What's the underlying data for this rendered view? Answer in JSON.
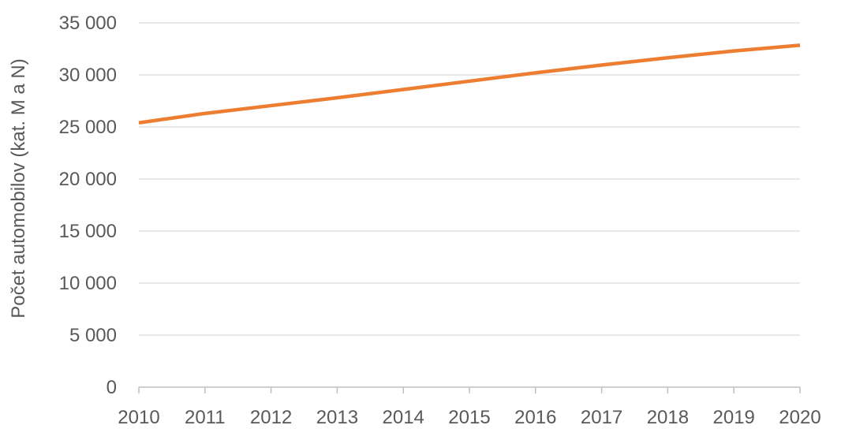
{
  "chart_data": {
    "type": "line",
    "title": "",
    "xlabel": "",
    "ylabel": "Počet automobilov (kat. M a N)",
    "x": [
      2010,
      2011,
      2012,
      2013,
      2014,
      2015,
      2016,
      2017,
      2018,
      2019,
      2020
    ],
    "x_tick_labels": [
      "2010",
      "2011",
      "2012",
      "2013",
      "2014",
      "2015",
      "2016",
      "2017",
      "2018",
      "2019",
      "2020"
    ],
    "y_ticks": [
      0,
      5000,
      10000,
      15000,
      20000,
      25000,
      30000,
      35000
    ],
    "y_tick_labels": [
      "0",
      "5 000",
      "10 000",
      "15 000",
      "20 000",
      "25 000",
      "30 000",
      "35 000"
    ],
    "ylim": [
      0,
      35000
    ],
    "grid": true,
    "legend": "none",
    "series": [
      {
        "color": "#ED7D31",
        "values": [
          25400,
          26300,
          27050,
          27800,
          28600,
          29400,
          30200,
          30950,
          31650,
          32300,
          32850
        ]
      }
    ],
    "colors": {
      "gridline": "#D9D9D9",
      "axis": "#BFBFBF",
      "text": "#595959"
    }
  }
}
